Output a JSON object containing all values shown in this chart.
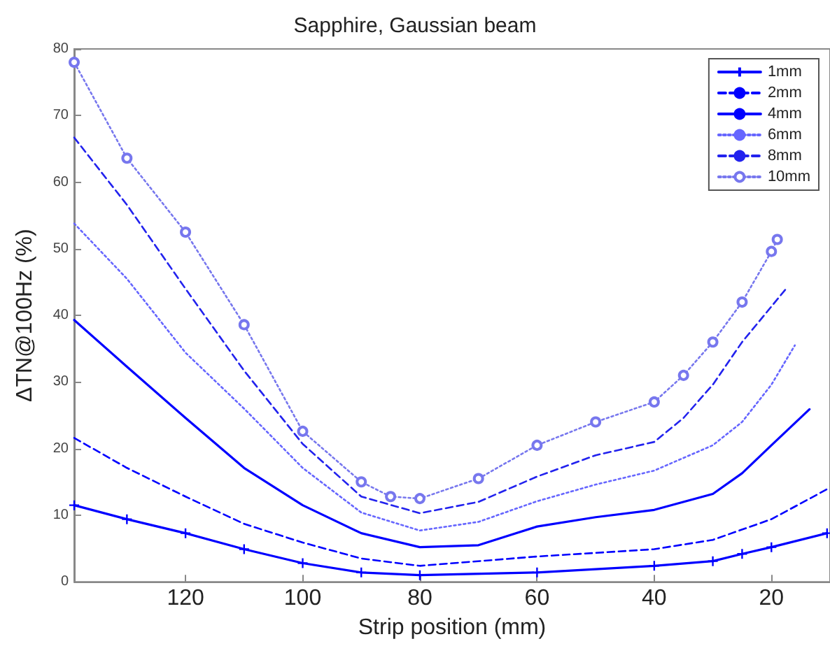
{
  "chart_data": {
    "type": "line",
    "title": "Sapphire, Gaussian beam",
    "xlabel": "Strip position (mm)",
    "ylabel": "ΔTN@100Hz (%)",
    "xlim": [
      139,
      10
    ],
    "xticks": [
      120,
      100,
      80,
      60,
      40,
      20
    ],
    "ylim": [
      0,
      80
    ],
    "yticks": [
      0,
      10,
      20,
      30,
      40,
      50,
      60,
      70,
      80
    ],
    "grid": false,
    "legend": "top right",
    "series": [
      {
        "name": "1mm",
        "color": "#0000ff",
        "marker": "cross",
        "line_style": "solid",
        "x": [
          139,
          130,
          120,
          110,
          100,
          90,
          80,
          60,
          40,
          30,
          25,
          20,
          10.5
        ],
        "values": [
          11.5,
          9.4,
          7.3,
          4.9,
          2.8,
          1.4,
          1,
          1.4,
          2.4,
          3.1,
          4.2,
          5.2,
          7.3
        ]
      },
      {
        "name": "2mm",
        "color": "#0000ff",
        "marker": "none",
        "line_style": "dashed",
        "x": [
          139,
          130,
          120,
          110,
          100,
          90,
          80,
          60,
          40,
          30,
          20,
          10.5
        ],
        "values": [
          21.6,
          17.1,
          12.8,
          8.7,
          5.9,
          3.5,
          2.4,
          3.8,
          4.9,
          6.3,
          9.4,
          13.9
        ]
      },
      {
        "name": "4mm",
        "color": "#0000ff",
        "marker": "none",
        "line_style": "solid",
        "x": [
          139,
          130,
          120,
          110,
          100,
          90,
          80,
          70,
          60,
          50,
          40,
          30,
          25,
          20,
          13.5
        ],
        "values": [
          39.3,
          32.3,
          24.6,
          17.1,
          11.5,
          7.3,
          5.2,
          5.5,
          8.3,
          9.7,
          10.8,
          13.2,
          16.3,
          20.5,
          25.9
        ]
      },
      {
        "name": "6mm",
        "color": "#6666ff",
        "marker": "none",
        "line_style": "dotted",
        "x": [
          139,
          130,
          120,
          110,
          100,
          90,
          80,
          70,
          60,
          50,
          40,
          30,
          25,
          20,
          16
        ],
        "values": [
          53.8,
          45.5,
          34.4,
          26,
          17.1,
          10.4,
          7.7,
          9,
          12.1,
          14.6,
          16.7,
          20.5,
          24,
          29.6,
          35.5
        ]
      },
      {
        "name": "8mm",
        "color": "#2222ee",
        "marker": "none",
        "line_style": "dashed",
        "x": [
          139,
          130,
          120,
          110,
          100,
          90,
          80,
          70,
          60,
          50,
          40,
          35,
          30,
          25,
          17.5
        ],
        "values": [
          66.7,
          56.6,
          44,
          31.7,
          20.7,
          12.8,
          10.3,
          12,
          15.8,
          19,
          21,
          24.6,
          29.6,
          36,
          44
        ]
      },
      {
        "name": "10mm",
        "color": "#7777ee",
        "marker": "circle",
        "line_style": "dotted",
        "x": [
          139,
          130,
          120,
          110,
          100,
          90,
          85,
          80,
          70,
          60,
          50,
          40,
          35,
          30,
          25,
          20,
          19
        ],
        "values": [
          78,
          63.6,
          52.5,
          38.6,
          22.6,
          15,
          12.8,
          12.5,
          15.5,
          20.5,
          24,
          27,
          31,
          36,
          42,
          49.6,
          51.4
        ]
      }
    ]
  }
}
